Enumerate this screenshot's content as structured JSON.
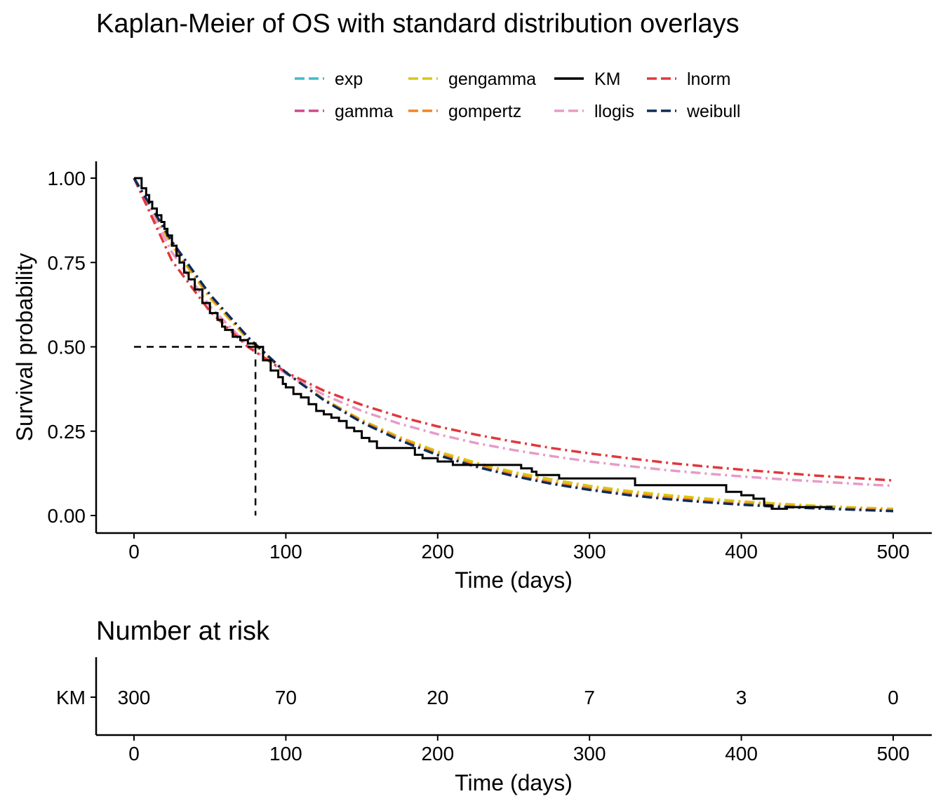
{
  "chart_data": {
    "type": "line",
    "title": "Kaplan-Meier of OS with standard distribution overlays",
    "xlabel": "Time (days)",
    "ylabel": "Survival probability",
    "xlim": [
      0,
      500
    ],
    "ylim": [
      0,
      1
    ],
    "x_ticks": [
      0,
      100,
      200,
      300,
      400,
      500
    ],
    "y_ticks": [
      "0.00",
      "0.25",
      "0.50",
      "0.75",
      "1.00"
    ],
    "grid": false,
    "legend_position": "top",
    "legend": [
      {
        "name": "exp",
        "color": "#3fbccc",
        "dash": "dashed"
      },
      {
        "name": "gamma",
        "color": "#d0478f",
        "dash": "dashed"
      },
      {
        "name": "gengamma",
        "color": "#d8c614",
        "dash": "dashed"
      },
      {
        "name": "gompertz",
        "color": "#f0861f",
        "dash": "dashed"
      },
      {
        "name": "KM",
        "color": "#000000",
        "dash": "solid"
      },
      {
        "name": "llogis",
        "color": "#e89ac8",
        "dash": "dashed"
      },
      {
        "name": "lnorm",
        "color": "#e0383c",
        "dash": "dashed"
      },
      {
        "name": "weibull",
        "color": "#0b2d5a",
        "dash": "dashed"
      }
    ],
    "median_survival": {
      "time": 80,
      "probability": 0.5
    },
    "km": {
      "x": [
        0,
        5,
        8,
        10,
        12,
        15,
        18,
        20,
        22,
        25,
        28,
        30,
        33,
        36,
        40,
        45,
        50,
        55,
        58,
        60,
        65,
        70,
        75,
        80,
        85,
        90,
        95,
        98,
        100,
        105,
        110,
        115,
        120,
        125,
        130,
        135,
        140,
        145,
        150,
        155,
        160,
        170,
        180,
        185,
        190,
        200,
        210,
        220,
        240,
        255,
        262,
        265,
        280,
        300,
        330,
        360,
        390,
        400,
        408,
        415,
        420,
        430,
        460
      ],
      "y": [
        1.0,
        0.97,
        0.95,
        0.93,
        0.91,
        0.89,
        0.87,
        0.85,
        0.83,
        0.8,
        0.77,
        0.75,
        0.72,
        0.7,
        0.67,
        0.63,
        0.6,
        0.58,
        0.56,
        0.55,
        0.53,
        0.52,
        0.51,
        0.5,
        0.46,
        0.43,
        0.41,
        0.39,
        0.38,
        0.36,
        0.35,
        0.33,
        0.31,
        0.3,
        0.29,
        0.28,
        0.26,
        0.25,
        0.23,
        0.22,
        0.2,
        0.2,
        0.2,
        0.18,
        0.17,
        0.16,
        0.15,
        0.15,
        0.15,
        0.14,
        0.13,
        0.12,
        0.11,
        0.11,
        0.09,
        0.09,
        0.07,
        0.06,
        0.05,
        0.03,
        0.02,
        0.025,
        0.025
      ]
    },
    "series": [
      {
        "name": "exp",
        "color": "#3fbccc",
        "x": [
          0,
          25,
          50,
          75,
          100,
          125,
          150,
          175,
          200,
          225,
          250,
          275,
          300,
          325,
          350,
          375,
          400,
          425,
          450,
          475,
          500
        ],
        "y": [
          1.0,
          0.81,
          0.653,
          0.528,
          0.424,
          0.344,
          0.279,
          0.226,
          0.181,
          0.147,
          0.12,
          0.097,
          0.078,
          0.063,
          0.051,
          0.042,
          0.033,
          0.027,
          0.022,
          0.018,
          0.014
        ]
      },
      {
        "name": "gamma",
        "color": "#d0478f",
        "x": [
          0,
          25,
          50,
          75,
          100,
          125,
          150,
          175,
          200,
          225,
          250,
          275,
          300,
          325,
          350,
          375,
          400,
          425,
          450,
          475,
          500
        ],
        "y": [
          1.0,
          0.812,
          0.654,
          0.528,
          0.424,
          0.343,
          0.278,
          0.225,
          0.181,
          0.147,
          0.119,
          0.096,
          0.078,
          0.063,
          0.051,
          0.041,
          0.033,
          0.027,
          0.022,
          0.018,
          0.014
        ]
      },
      {
        "name": "gengamma",
        "color": "#d8c614",
        "x": [
          0,
          25,
          50,
          75,
          100,
          125,
          150,
          175,
          200,
          225,
          250,
          275,
          300,
          325,
          350,
          375,
          400,
          425,
          450,
          475,
          500
        ],
        "y": [
          1.0,
          0.8,
          0.645,
          0.522,
          0.423,
          0.345,
          0.283,
          0.232,
          0.19,
          0.157,
          0.129,
          0.107,
          0.088,
          0.073,
          0.061,
          0.051,
          0.042,
          0.035,
          0.029,
          0.024,
          0.02
        ]
      },
      {
        "name": "gompertz",
        "color": "#f0861f",
        "x": [
          0,
          25,
          50,
          75,
          100,
          125,
          150,
          175,
          200,
          225,
          250,
          275,
          300,
          325,
          350,
          375,
          400,
          425,
          450,
          475,
          500
        ],
        "y": [
          1.0,
          0.805,
          0.65,
          0.526,
          0.424,
          0.344,
          0.28,
          0.228,
          0.184,
          0.15,
          0.122,
          0.099,
          0.081,
          0.066,
          0.054,
          0.044,
          0.036,
          0.03,
          0.024,
          0.02,
          0.016
        ]
      },
      {
        "name": "llogis",
        "color": "#e89ac8",
        "x": [
          0,
          25,
          50,
          75,
          100,
          125,
          150,
          175,
          200,
          225,
          250,
          275,
          300,
          325,
          350,
          375,
          400,
          425,
          450,
          475,
          500
        ],
        "y": [
          1.0,
          0.78,
          0.62,
          0.505,
          0.42,
          0.358,
          0.31,
          0.272,
          0.241,
          0.215,
          0.194,
          0.176,
          0.16,
          0.147,
          0.135,
          0.125,
          0.116,
          0.108,
          0.101,
          0.094,
          0.088
        ]
      },
      {
        "name": "lnorm",
        "color": "#e0383c",
        "x": [
          0,
          25,
          50,
          75,
          100,
          125,
          150,
          175,
          200,
          225,
          250,
          275,
          300,
          325,
          350,
          375,
          400,
          425,
          450,
          475,
          500
        ],
        "y": [
          1.0,
          0.755,
          0.605,
          0.5,
          0.425,
          0.37,
          0.328,
          0.293,
          0.264,
          0.24,
          0.219,
          0.2,
          0.184,
          0.17,
          0.157,
          0.146,
          0.136,
          0.127,
          0.118,
          0.111,
          0.104
        ]
      },
      {
        "name": "weibull",
        "color": "#0b2d5a",
        "x": [
          0,
          25,
          50,
          75,
          100,
          125,
          150,
          175,
          200,
          225,
          250,
          275,
          300,
          325,
          350,
          375,
          400,
          425,
          450,
          475,
          500
        ],
        "y": [
          1.0,
          0.812,
          0.655,
          0.529,
          0.424,
          0.342,
          0.276,
          0.223,
          0.179,
          0.145,
          0.117,
          0.094,
          0.076,
          0.061,
          0.049,
          0.04,
          0.032,
          0.026,
          0.021,
          0.017,
          0.013
        ]
      }
    ]
  },
  "risk_table": {
    "title": "Number at risk",
    "row_label": "KM",
    "times": [
      0,
      100,
      200,
      300,
      400,
      500
    ],
    "counts": [
      "300",
      "70",
      "20",
      "7",
      "3",
      "0"
    ],
    "xlabel": "Time (days)",
    "x_ticks": [
      0,
      100,
      200,
      300,
      400,
      500
    ]
  }
}
